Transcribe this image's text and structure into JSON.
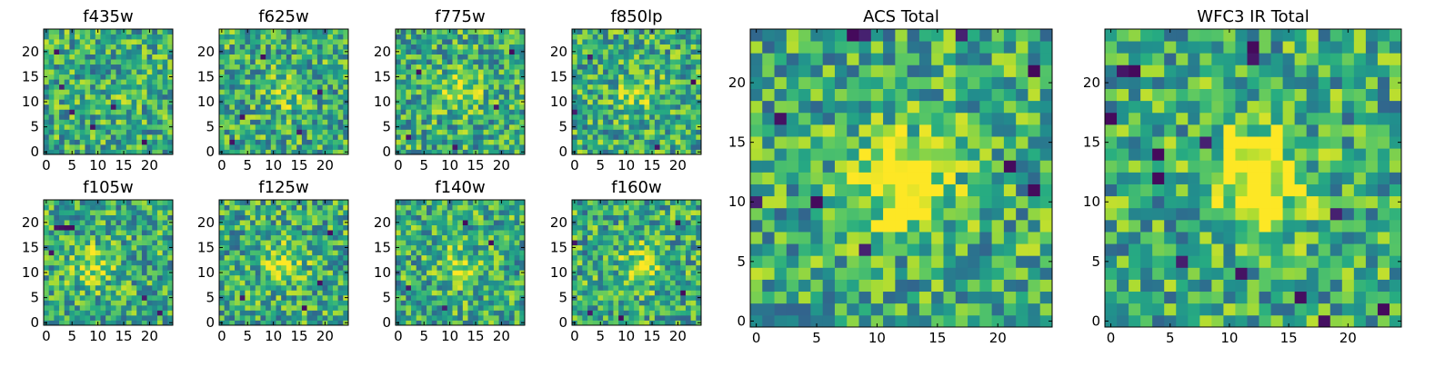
{
  "chart_data": [
    {
      "type": "heatmap",
      "title": "f435w",
      "xticks": [
        "0",
        "5",
        "10",
        "15",
        "20"
      ],
      "yticks": [
        "0",
        "5",
        "10",
        "15",
        "20"
      ],
      "xlim": [
        0,
        24
      ],
      "ylim": [
        0,
        24
      ],
      "colormap": "viridis",
      "bright_center": [
        12,
        11
      ],
      "bright_strength": 0.05,
      "seed": 11,
      "dark_pixels": [
        [
          3,
          13
        ],
        [
          5,
          8
        ],
        [
          9,
          5
        ],
        [
          13,
          9
        ],
        [
          19,
          2
        ],
        [
          2,
          20
        ]
      ]
    },
    {
      "type": "heatmap",
      "title": "f625w",
      "xticks": [
        "0",
        "5",
        "10",
        "15",
        "20"
      ],
      "yticks": [
        "0",
        "5",
        "10",
        "15",
        "20"
      ],
      "xlim": [
        0,
        24
      ],
      "ylim": [
        0,
        24
      ],
      "colormap": "viridis",
      "bright_center": [
        12,
        12
      ],
      "bright_strength": 0.2,
      "seed": 23,
      "dark_pixels": [
        [
          4,
          7
        ],
        [
          15,
          4
        ],
        [
          19,
          12
        ],
        [
          8,
          19
        ],
        [
          2,
          2
        ]
      ]
    },
    {
      "type": "heatmap",
      "title": "f775w",
      "xticks": [
        "0",
        "5",
        "10",
        "15",
        "20"
      ],
      "yticks": [
        "0",
        "5",
        "10",
        "15",
        "20"
      ],
      "xlim": [
        0,
        24
      ],
      "ylim": [
        0,
        24
      ],
      "colormap": "viridis",
      "bright_center": [
        12,
        12
      ],
      "bright_strength": 0.3,
      "seed": 37,
      "dark_pixels": [
        [
          4,
          16
        ],
        [
          19,
          9
        ],
        [
          11,
          1
        ],
        [
          2,
          3
        ],
        [
          22,
          20
        ]
      ]
    },
    {
      "type": "heatmap",
      "title": "f850lp",
      "xticks": [
        "0",
        "5",
        "10",
        "15",
        "20"
      ],
      "yticks": [
        "0",
        "5",
        "10",
        "15",
        "20"
      ],
      "xlim": [
        0,
        24
      ],
      "ylim": [
        0,
        24
      ],
      "colormap": "viridis",
      "bright_center": [
        12,
        12
      ],
      "bright_strength": 0.25,
      "seed": 41,
      "dark_pixels": [
        [
          0,
          8
        ],
        [
          23,
          14
        ],
        [
          16,
          1
        ],
        [
          3,
          19
        ]
      ]
    },
    {
      "type": "heatmap",
      "title": "f105w",
      "xticks": [
        "0",
        "5",
        "10",
        "15",
        "20"
      ],
      "yticks": [
        "0",
        "5",
        "10",
        "15",
        "20"
      ],
      "xlim": [
        0,
        24
      ],
      "ylim": [
        0,
        24
      ],
      "colormap": "viridis",
      "bright_center": [
        9,
        11
      ],
      "bright_strength": 0.3,
      "seed": 53,
      "dark_pixels": [
        [
          2,
          19
        ],
        [
          3,
          19
        ],
        [
          4,
          19
        ],
        [
          5,
          19
        ],
        [
          19,
          5
        ],
        [
          1,
          14
        ],
        [
          22,
          2
        ]
      ]
    },
    {
      "type": "heatmap",
      "title": "f125w",
      "xticks": [
        "0",
        "5",
        "10",
        "15",
        "20"
      ],
      "yticks": [
        "0",
        "5",
        "10",
        "15",
        "20"
      ],
      "xlim": [
        0,
        24
      ],
      "ylim": [
        0,
        24
      ],
      "colormap": "viridis",
      "bright_center": [
        12,
        12
      ],
      "bright_strength": 0.3,
      "seed": 67,
      "dark_pixels": [
        [
          19,
          8
        ],
        [
          16,
          3
        ],
        [
          4,
          5
        ],
        [
          21,
          18
        ]
      ]
    },
    {
      "type": "heatmap",
      "title": "f140w",
      "xticks": [
        "0",
        "5",
        "10",
        "15",
        "20"
      ],
      "yticks": [
        "0",
        "5",
        "10",
        "15",
        "20"
      ],
      "xlim": [
        0,
        24
      ],
      "ylim": [
        0,
        24
      ],
      "colormap": "viridis",
      "bright_center": [
        12,
        11
      ],
      "bright_strength": 0.25,
      "seed": 79,
      "dark_pixels": [
        [
          2,
          7
        ],
        [
          9,
          3
        ],
        [
          18,
          16
        ],
        [
          13,
          20
        ]
      ]
    },
    {
      "type": "heatmap",
      "title": "f160w",
      "xticks": [
        "0",
        "5",
        "10",
        "15",
        "20"
      ],
      "yticks": [
        "0",
        "5",
        "10",
        "15",
        "20"
      ],
      "xlim": [
        0,
        24
      ],
      "ylim": [
        0,
        24
      ],
      "colormap": "viridis",
      "bright_center": [
        13,
        11
      ],
      "bright_strength": 0.4,
      "seed": 83,
      "dark_pixels": [
        [
          0,
          16
        ],
        [
          3,
          2
        ],
        [
          9,
          1
        ],
        [
          21,
          6
        ],
        [
          20,
          20
        ]
      ]
    },
    {
      "type": "heatmap",
      "title": "ACS Total",
      "xticks": [
        "0",
        "5",
        "10",
        "15",
        "20"
      ],
      "yticks": [
        "0",
        "5",
        "10",
        "15",
        "20"
      ],
      "xlim": [
        0,
        24
      ],
      "ylim": [
        0,
        24
      ],
      "colormap": "viridis",
      "bright_center": [
        12,
        12
      ],
      "bright_strength": 0.5,
      "seed": 97,
      "dark_pixels": [
        [
          8,
          24
        ],
        [
          9,
          24
        ],
        [
          17,
          24
        ],
        [
          2,
          17
        ],
        [
          21,
          13
        ],
        [
          0,
          10
        ],
        [
          5,
          10
        ],
        [
          9,
          6
        ],
        [
          23,
          21
        ],
        [
          23,
          11
        ]
      ]
    },
    {
      "type": "heatmap",
      "title": "WFC3 IR Total",
      "xticks": [
        "0",
        "5",
        "10",
        "15",
        "20"
      ],
      "yticks": [
        "0",
        "5",
        "10",
        "15",
        "20"
      ],
      "xlim": [
        0,
        24
      ],
      "ylim": [
        0,
        24
      ],
      "colormap": "viridis",
      "bright_center": [
        12,
        12
      ],
      "bright_strength": 0.55,
      "seed": 109,
      "dark_pixels": [
        [
          1,
          21
        ],
        [
          2,
          21
        ],
        [
          0,
          17
        ],
        [
          12,
          22
        ],
        [
          12,
          23
        ],
        [
          4,
          14
        ],
        [
          8,
          15
        ],
        [
          4,
          12
        ],
        [
          19,
          9
        ],
        [
          6,
          5
        ],
        [
          11,
          4
        ],
        [
          16,
          2
        ],
        [
          23,
          1
        ],
        [
          18,
          0
        ]
      ]
    }
  ]
}
